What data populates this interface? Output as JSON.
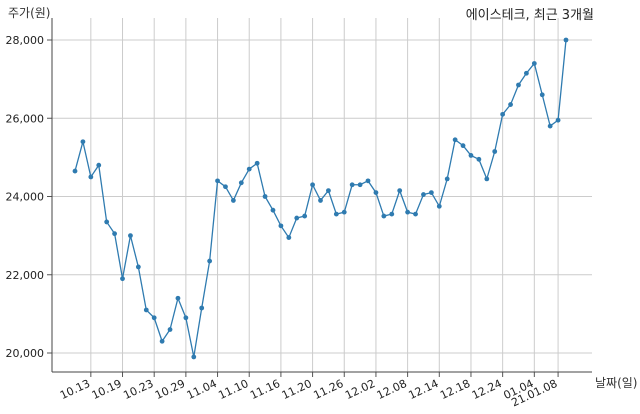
{
  "chart_data": {
    "type": "line",
    "title": "에이스테크, 최근 3개월",
    "ylabel": "주가(원)",
    "xlabel": "날짜(일)",
    "ylim": [
      19700,
      28500
    ],
    "yticks": [
      20000,
      22000,
      24000,
      26000,
      28000
    ],
    "ytick_labels": [
      "20,000",
      "22,000",
      "24,000",
      "26,000",
      "28,000"
    ],
    "xtick_labels": [
      "10.13",
      "10.19",
      "10.23",
      "10.29",
      "11.04",
      "11.10",
      "11.16",
      "11.20",
      "11.26",
      "12.02",
      "12.08",
      "12.14",
      "12.18",
      "12.24",
      "01.04",
      "21.01.08"
    ],
    "xtick_index": [
      2,
      6,
      10,
      14,
      18,
      22,
      26,
      30,
      34,
      38,
      42,
      46,
      50,
      54,
      58,
      61
    ],
    "grid": true,
    "line_color": "#2f7bb0",
    "series": [
      {
        "values": [
          24650,
          25400,
          24500,
          24800,
          23350,
          23050,
          21900,
          23000,
          22200,
          21100,
          20900,
          20300,
          20600,
          21400,
          20900,
          19900,
          21150,
          22350,
          24400,
          24250,
          23900,
          24350,
          24700,
          24850,
          24000,
          23650,
          23250,
          22950,
          23450,
          23500,
          24300,
          23900,
          24150,
          23550,
          23600,
          24300,
          24300,
          24400,
          24100,
          23500,
          23550,
          24150,
          23600,
          23550,
          24050,
          24100,
          23750,
          24450,
          25450,
          25300,
          25050,
          24950,
          24450,
          25150,
          26100,
          26350,
          26850,
          27150,
          27400,
          26600,
          25800,
          25950,
          28000
        ]
      }
    ]
  }
}
